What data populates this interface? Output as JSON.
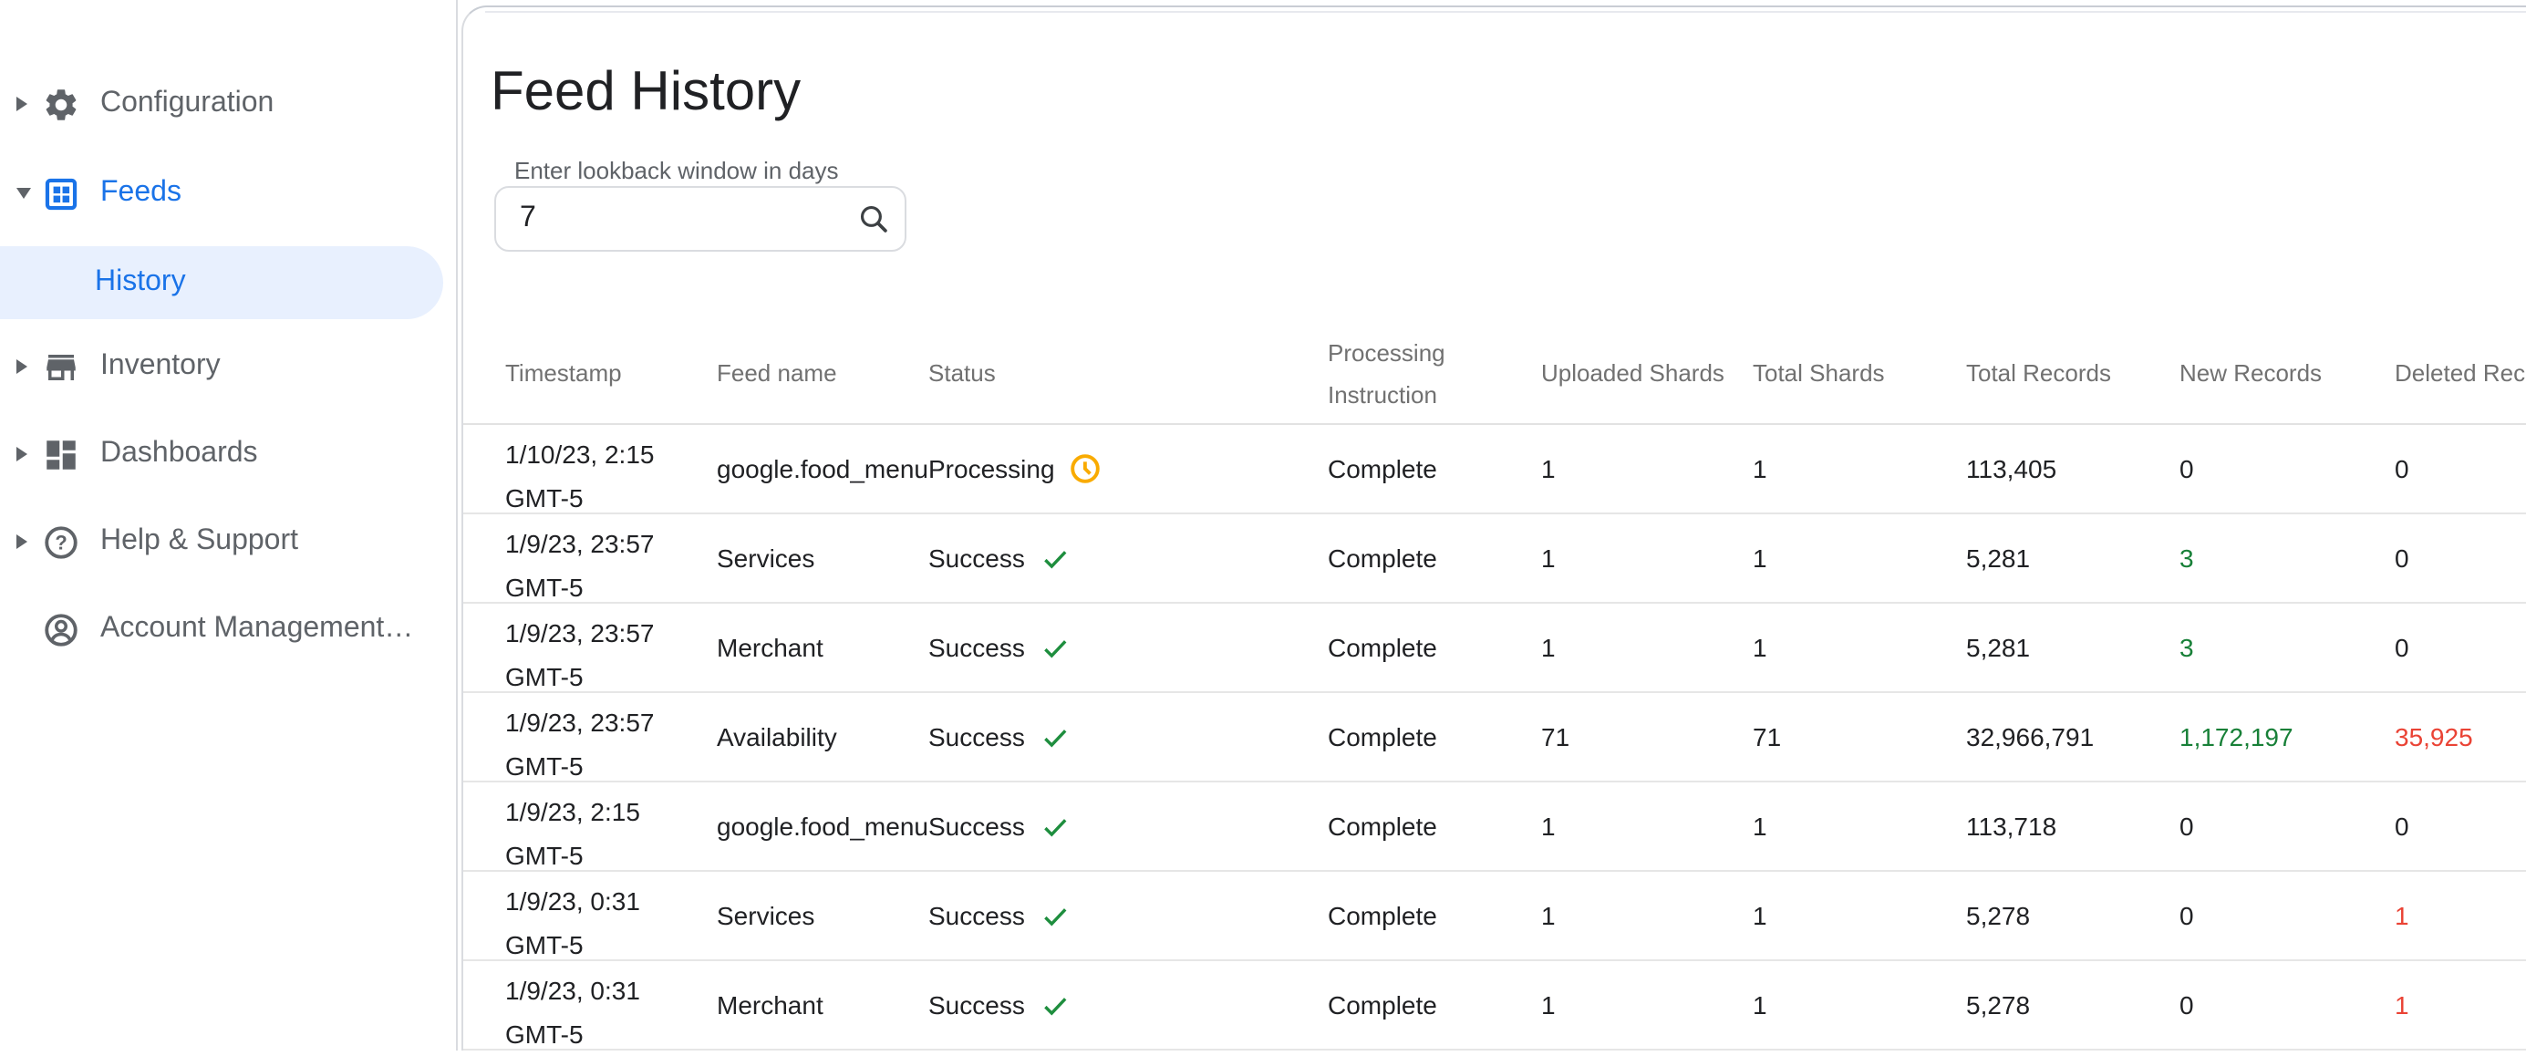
{
  "colors": {
    "accent_blue": "#1a73e8",
    "selected_bg": "#e8f0fe",
    "sidebar_gray": "#5f6368",
    "positive_green": "#188038",
    "negative_red": "#ea4335",
    "warning_amber": "#f9ab00",
    "check_green": "#1e8e3e"
  },
  "sidebar": {
    "items": [
      {
        "label": "Configuration"
      },
      {
        "label": "Feeds"
      },
      {
        "label": "History"
      },
      {
        "label": "Inventory"
      },
      {
        "label": "Dashboards"
      },
      {
        "label": "Help & Support"
      },
      {
        "label": "Account Management…"
      }
    ]
  },
  "main": {
    "title": "Feed History",
    "lookback": {
      "label": "Enter lookback window in days",
      "value": "7"
    }
  },
  "table": {
    "columns": [
      "Timestamp",
      "Feed name",
      "Status",
      "Processing Instruction",
      "Uploaded Shards",
      "Total Shards",
      "Total Records",
      "New Records",
      "Deleted Records"
    ],
    "rows": [
      {
        "timestamp": "1/10/23, 2:15 GMT-5",
        "feed_name": "google.food_menu",
        "status": "Processing",
        "status_icon": "clock-icon",
        "processing_instruction": "Complete",
        "uploaded_shards": "1",
        "total_shards": "1",
        "total_records": "113,405",
        "new_records": "0",
        "deleted_records": "0"
      },
      {
        "timestamp": "1/9/23, 23:57 GMT-5",
        "feed_name": "Services",
        "status": "Success",
        "status_icon": "check-icon",
        "processing_instruction": "Complete",
        "uploaded_shards": "1",
        "total_shards": "1",
        "total_records": "5,281",
        "new_records": "3",
        "new_records_color": "green",
        "deleted_records": "0"
      },
      {
        "timestamp": "1/9/23, 23:57 GMT-5",
        "feed_name": "Merchant",
        "status": "Success",
        "status_icon": "check-icon",
        "processing_instruction": "Complete",
        "uploaded_shards": "1",
        "total_shards": "1",
        "total_records": "5,281",
        "new_records": "3",
        "new_records_color": "green",
        "deleted_records": "0"
      },
      {
        "timestamp": "1/9/23, 23:57 GMT-5",
        "feed_name": "Availability",
        "status": "Success",
        "status_icon": "check-icon",
        "processing_instruction": "Complete",
        "uploaded_shards": "71",
        "total_shards": "71",
        "total_records": "32,966,791",
        "new_records": "1,172,197",
        "new_records_color": "green",
        "deleted_records": "35,925",
        "deleted_records_color": "red"
      },
      {
        "timestamp": "1/9/23, 2:15 GMT-5",
        "feed_name": "google.food_menu",
        "status": "Success",
        "status_icon": "check-icon",
        "processing_instruction": "Complete",
        "uploaded_shards": "1",
        "total_shards": "1",
        "total_records": "113,718",
        "new_records": "0",
        "deleted_records": "0"
      },
      {
        "timestamp": "1/9/23, 0:31 GMT-5",
        "feed_name": "Services",
        "status": "Success",
        "status_icon": "check-icon",
        "processing_instruction": "Complete",
        "uploaded_shards": "1",
        "total_shards": "1",
        "total_records": "5,278",
        "new_records": "0",
        "deleted_records": "1",
        "deleted_records_color": "red"
      },
      {
        "timestamp": "1/9/23, 0:31 GMT-5",
        "feed_name": "Merchant",
        "status": "Success",
        "status_icon": "check-icon",
        "processing_instruction": "Complete",
        "uploaded_shards": "1",
        "total_shards": "1",
        "total_records": "5,278",
        "new_records": "0",
        "deleted_records": "1",
        "deleted_records_color": "red"
      }
    ]
  }
}
